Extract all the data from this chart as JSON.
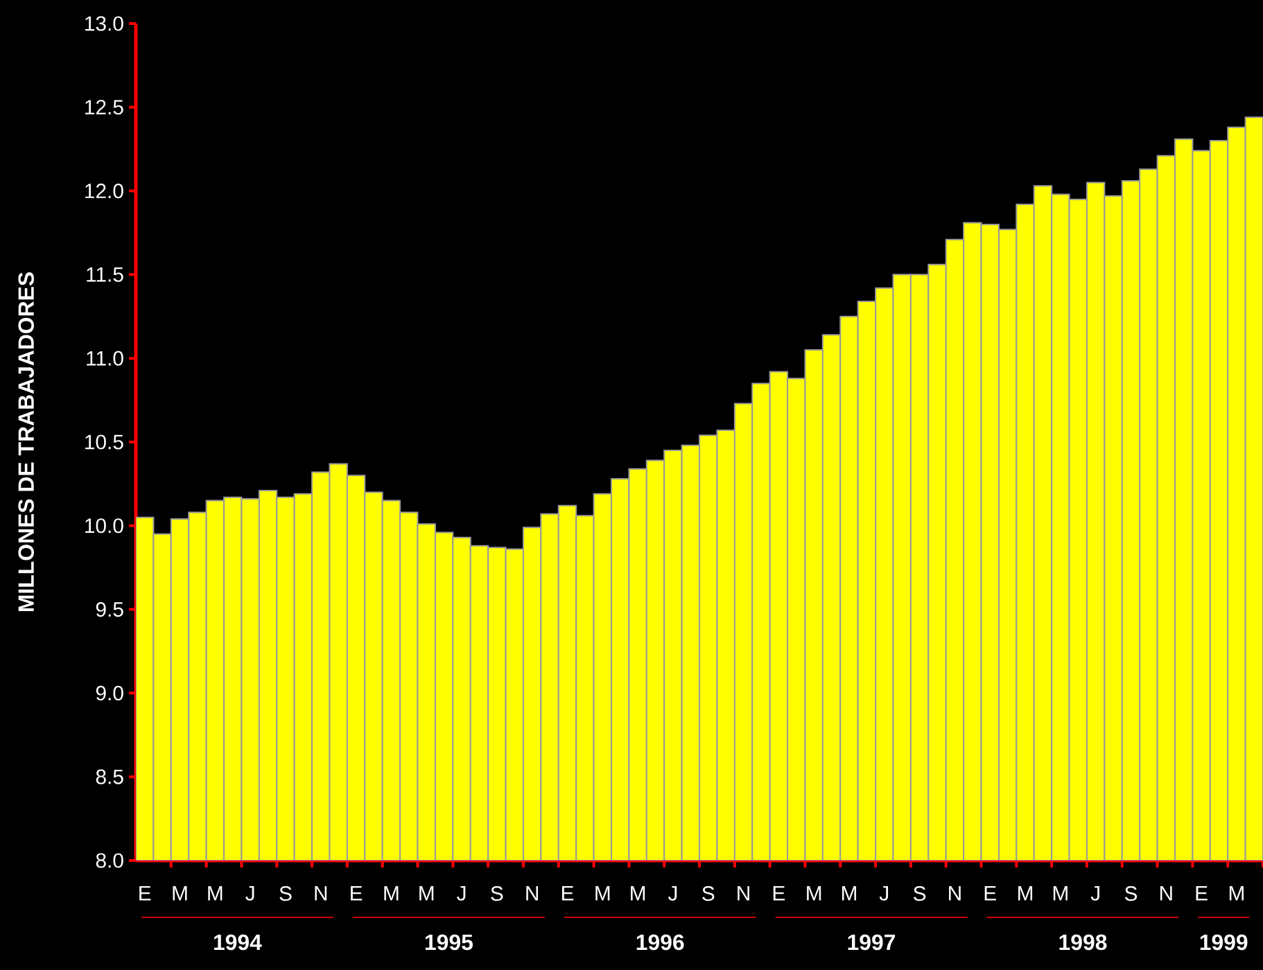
{
  "chart_data": {
    "type": "bar",
    "ylabel": "MILLONES DE TRABAJADORES",
    "categories": [
      "E",
      null,
      "M",
      null,
      "M",
      null,
      "J",
      null,
      "S",
      null,
      "N",
      null,
      "E",
      null,
      "M",
      null,
      "M",
      null,
      "J",
      null,
      "S",
      null,
      "N",
      null,
      "E",
      null,
      "M",
      null,
      "M",
      null,
      "J",
      null,
      "S",
      null,
      "N",
      null,
      "E",
      null,
      "M",
      null,
      "M",
      null,
      "J",
      null,
      "S",
      null,
      "N",
      null,
      "E",
      null,
      "M",
      null,
      "M",
      null,
      "J",
      null,
      "S",
      null,
      "N",
      null,
      "E",
      null,
      "M",
      null
    ],
    "values": [
      10.05,
      9.95,
      10.04,
      10.08,
      10.15,
      10.17,
      10.16,
      10.21,
      10.17,
      10.19,
      10.32,
      10.37,
      10.3,
      10.2,
      10.15,
      10.08,
      10.01,
      9.96,
      9.93,
      9.88,
      9.87,
      9.86,
      9.99,
      10.07,
      10.12,
      10.06,
      10.19,
      10.28,
      10.34,
      10.39,
      10.45,
      10.48,
      10.54,
      10.57,
      10.73,
      10.85,
      10.92,
      10.88,
      11.05,
      11.14,
      11.25,
      11.34,
      11.42,
      11.5,
      11.5,
      11.56,
      11.71,
      11.81,
      11.8,
      11.77,
      11.92,
      12.03,
      11.98,
      11.95,
      12.05,
      11.97,
      12.06,
      12.13,
      12.21,
      12.31,
      12.24,
      12.3,
      12.38,
      12.44
    ],
    "color": "#ffff00",
    "ylim": [
      8,
      13
    ],
    "yticks": [
      {
        "value": 8,
        "label": "8.0"
      },
      {
        "value": 8.5,
        "label": "8.5"
      },
      {
        "value": 9,
        "label": "9.0"
      },
      {
        "value": 9.5,
        "label": "9.5"
      },
      {
        "value": 10,
        "label": "10.0"
      },
      {
        "value": 10.5,
        "label": "10.5"
      },
      {
        "value": 11,
        "label": "11.0"
      },
      {
        "value": 11.5,
        "label": "11.5"
      },
      {
        "value": 12,
        "label": "12.0"
      },
      {
        "value": 12.5,
        "label": "12.5"
      },
      {
        "value": 13,
        "label": "13.0"
      }
    ],
    "annotations": [
      "1994",
      "1995",
      "1996",
      "1997",
      "1998",
      "1999"
    ],
    "grid": false
  }
}
